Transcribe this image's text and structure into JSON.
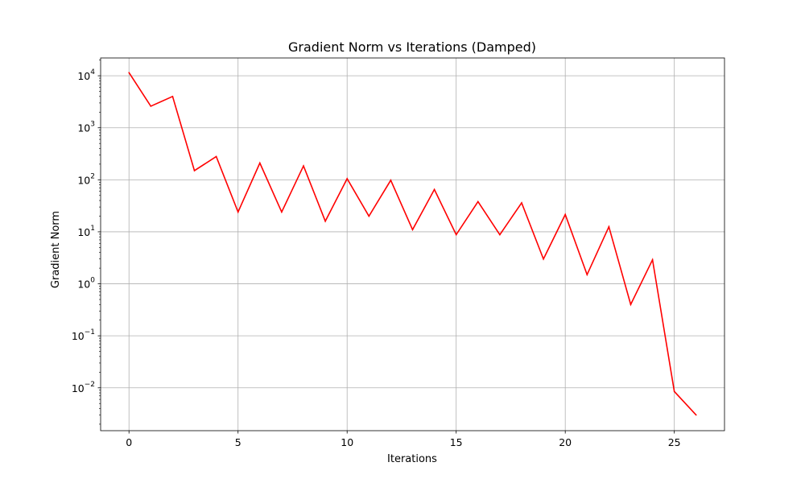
{
  "chart_data": {
    "type": "line",
    "title": "Gradient Norm vs Iterations (Damped)",
    "xlabel": "Iterations",
    "ylabel": "Gradient Norm",
    "yscale": "log",
    "grid": true,
    "xlim": [
      -1.3,
      27.3
    ],
    "ylim": [
      0.0015,
      22000
    ],
    "xticks": [
      0,
      5,
      10,
      15,
      20,
      25
    ],
    "yticks": [
      {
        "base": "10",
        "exp": "4",
        "value": 10000
      },
      {
        "base": "10",
        "exp": "3",
        "value": 1000
      },
      {
        "base": "10",
        "exp": "2",
        "value": 100
      },
      {
        "base": "10",
        "exp": "1",
        "value": 10
      },
      {
        "base": "10",
        "exp": "0",
        "value": 1
      },
      {
        "base": "10",
        "exp": "−1",
        "value": 0.1
      },
      {
        "base": "10",
        "exp": "−2",
        "value": 0.01
      }
    ],
    "series": [
      {
        "color": "#ff0000",
        "x": [
          0,
          1,
          2,
          3,
          4,
          5,
          6,
          7,
          8,
          9,
          10,
          11,
          12,
          13,
          14,
          15,
          16,
          17,
          18,
          19,
          20,
          21,
          22,
          23,
          24,
          25,
          26
        ],
        "values": [
          11500,
          2600,
          4000,
          150,
          280,
          24,
          210,
          24,
          185,
          16,
          105,
          20,
          98,
          11,
          65,
          8.8,
          38,
          8.8,
          36,
          3.0,
          21.5,
          1.5,
          12.5,
          0.4,
          2.9,
          0.0085,
          0.003
        ]
      }
    ]
  }
}
